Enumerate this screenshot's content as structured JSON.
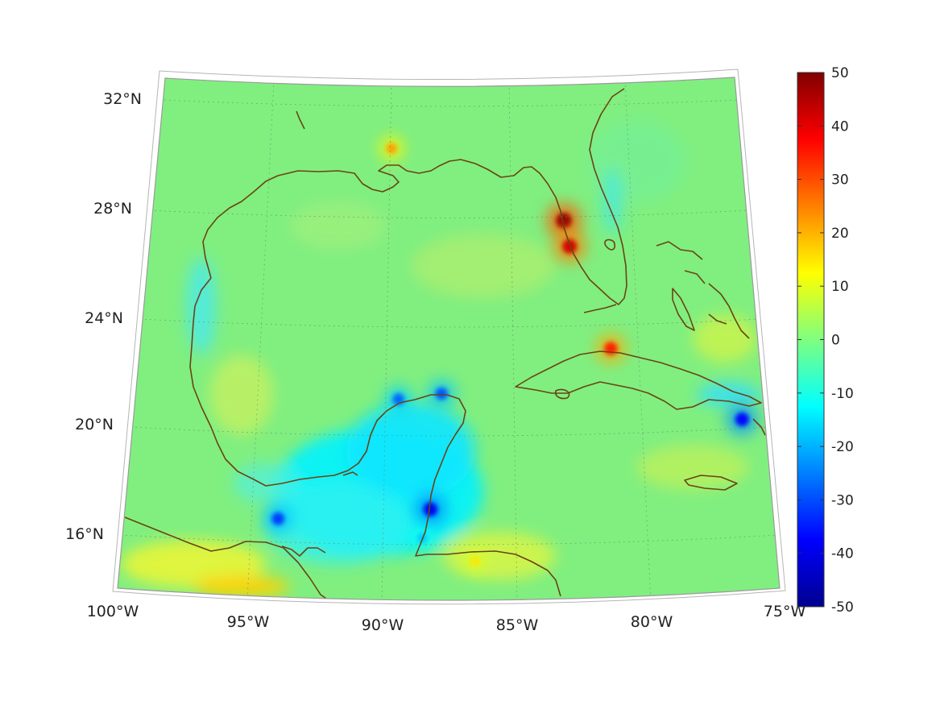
{
  "map": {
    "type": "filled-contour-map",
    "projection": "conic",
    "grid": true,
    "lat_ticks": [
      {
        "value": 32,
        "label": "32°N"
      },
      {
        "value": 28,
        "label": "28°N"
      },
      {
        "value": 24,
        "label": "24°N"
      },
      {
        "value": 20,
        "label": "20°N"
      },
      {
        "value": 16,
        "label": "16°N"
      }
    ],
    "lon_ticks": [
      {
        "value": -100,
        "label": "100°W"
      },
      {
        "value": -95,
        "label": "95°W"
      },
      {
        "value": -90,
        "label": "90°W"
      },
      {
        "value": -85,
        "label": "85°W"
      },
      {
        "value": -80,
        "label": "80°W"
      },
      {
        "value": -75,
        "label": "75°W"
      }
    ],
    "coastline_color": "#6b4314",
    "background_value_color": "#7ff07f",
    "hotspots": [
      {
        "name": "west-florida-coast",
        "lon": -82.7,
        "lat": 27.5,
        "value": 48
      },
      {
        "name": "west-florida-coast-south",
        "lon": -82.5,
        "lat": 26.6,
        "value": 42
      },
      {
        "name": "north-cuba",
        "lon": -81.0,
        "lat": 23.0,
        "value": 35
      },
      {
        "name": "louisiana",
        "lon": -90.0,
        "lat": 30.0,
        "value": 22
      },
      {
        "name": "honduras-coast",
        "lon": -86.5,
        "lat": 15.7,
        "value": 15
      },
      {
        "name": "yucatan-north",
        "lon": -89.5,
        "lat": 21.3,
        "value": -28
      },
      {
        "name": "yucatan-northeast",
        "lon": -87.8,
        "lat": 21.5,
        "value": -30
      },
      {
        "name": "belize",
        "lon": -88.2,
        "lat": 17.5,
        "value": -40
      },
      {
        "name": "eastern-cuba",
        "lon": -76.0,
        "lat": 20.3,
        "value": -38
      },
      {
        "name": "bay-of-campeche",
        "lon": -94.0,
        "lat": 17.0,
        "value": -32
      },
      {
        "name": "gulf-of-honduras",
        "lon": -88.5,
        "lat": 16.5,
        "value": -18
      }
    ]
  },
  "colorbar": {
    "min": -50,
    "max": 50,
    "colormap": "jet",
    "ticks": [
      "50",
      "40",
      "30",
      "20",
      "10",
      "0",
      "-10",
      "-20",
      "-30",
      "-40",
      "-50"
    ]
  }
}
